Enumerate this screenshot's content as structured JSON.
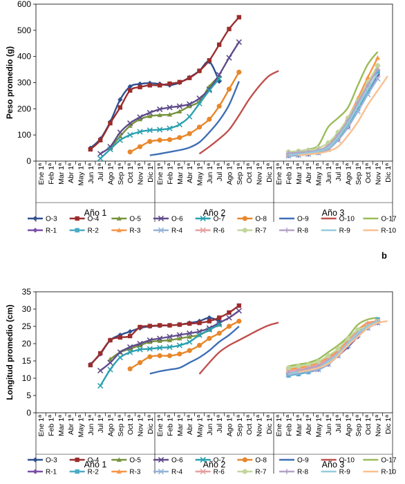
{
  "month_labels": [
    "Ene 1ª",
    "Feb 1ª",
    "Mar 1ª",
    "Abr 1ª",
    "May 1ª",
    "Jun 1ª",
    "Jul 1ª",
    "Ago 1ª",
    "Sep 1ª",
    "Oct 1ª",
    "Nov 1ª",
    "Dic 1ª"
  ],
  "year_labels": [
    "Año 1",
    "Año 2",
    "Año 3"
  ],
  "panel_letter": "b",
  "series_style": [
    {
      "name": "O-3",
      "color": "#2f4f8f",
      "marker": "diamond"
    },
    {
      "name": "O-4",
      "color": "#9b2d2d",
      "marker": "square"
    },
    {
      "name": "O-5",
      "color": "#76923c",
      "marker": "triangle"
    },
    {
      "name": "O-6",
      "color": "#5f4b8b",
      "marker": "x"
    },
    {
      "name": "O-7",
      "color": "#2aa0b0",
      "marker": "x"
    },
    {
      "name": "O-8",
      "color": "#e8872a",
      "marker": "circle"
    },
    {
      "name": "O-9",
      "color": "#3f6fb5",
      "marker": "none"
    },
    {
      "name": "O-10",
      "color": "#c0504d",
      "marker": "none"
    },
    {
      "name": "O-17",
      "color": "#9bbb59",
      "marker": "none"
    },
    {
      "name": "R-1",
      "color": "#7a4fa8",
      "marker": "diamond"
    },
    {
      "name": "R-2",
      "color": "#4bacc6",
      "marker": "square"
    },
    {
      "name": "R-3",
      "color": "#f79646",
      "marker": "triangle"
    },
    {
      "name": "R-4",
      "color": "#95b3d7",
      "marker": "x"
    },
    {
      "name": "R-6",
      "color": "#e6a0a0",
      "marker": "x"
    },
    {
      "name": "R-7",
      "color": "#c3d69b",
      "marker": "circle"
    },
    {
      "name": "R-8",
      "color": "#b3a2c7",
      "marker": "plus"
    },
    {
      "name": "R-9",
      "color": "#93cddd",
      "marker": "none"
    },
    {
      "name": "R-10",
      "color": "#fac090",
      "marker": "none"
    }
  ],
  "chart_data": [
    {
      "type": "line",
      "title": "",
      "ylabel": "Peso promedio (g)",
      "ylim": [
        0,
        600
      ],
      "yticks": [
        0,
        100,
        200,
        300,
        400,
        500,
        600
      ],
      "x_unit": "month index (1 = Ene 1ª of Año 1 ... 36 = Dic 1ª of Año 3)",
      "grid": false,
      "legend": "bottom",
      "series": [
        {
          "name": "O-3",
          "x": [
            6,
            7,
            8,
            9,
            10,
            11,
            12,
            13,
            14,
            15,
            16,
            17,
            18,
            19
          ],
          "y": [
            50,
            85,
            150,
            235,
            285,
            295,
            298,
            295,
            290,
            300,
            320,
            345,
            380,
            305
          ]
        },
        {
          "name": "O-4",
          "x": [
            6,
            7,
            8,
            9,
            10,
            11,
            12,
            13,
            14,
            15,
            16,
            17,
            18,
            19,
            20,
            21
          ],
          "y": [
            45,
            80,
            145,
            205,
            270,
            283,
            290,
            290,
            296,
            302,
            318,
            345,
            385,
            445,
            505,
            550
          ]
        },
        {
          "name": "O-5",
          "x": [
            8,
            9,
            10,
            11,
            12,
            13,
            14,
            15,
            16,
            17,
            18,
            19
          ],
          "y": [
            50,
            95,
            135,
            160,
            172,
            176,
            178,
            190,
            210,
            228,
            285,
            325
          ]
        },
        {
          "name": "O-6",
          "x": [
            7,
            8,
            9,
            10,
            11,
            12,
            13,
            14,
            15,
            16,
            17,
            18,
            19,
            20,
            21
          ],
          "y": [
            28,
            55,
            110,
            145,
            168,
            185,
            198,
            205,
            210,
            218,
            240,
            275,
            330,
            395,
            455
          ]
        },
        {
          "name": "O-7",
          "x": [
            7,
            8,
            9,
            10,
            11,
            12,
            13,
            14,
            15,
            16,
            17,
            18,
            19
          ],
          "y": [
            10,
            45,
            80,
            100,
            112,
            118,
            120,
            125,
            140,
            170,
            220,
            270,
            315
          ]
        },
        {
          "name": "O-8",
          "x": [
            10,
            11,
            12,
            13,
            14,
            15,
            16,
            17,
            18,
            19,
            20,
            21
          ],
          "y": [
            35,
            55,
            75,
            80,
            82,
            90,
            105,
            130,
            160,
            210,
            275,
            340
          ]
        },
        {
          "name": "O-9",
          "x": [
            12,
            13,
            14,
            15,
            16,
            17,
            18,
            19,
            20,
            21
          ],
          "y": [
            22,
            28,
            35,
            42,
            52,
            72,
            110,
            155,
            215,
            305
          ]
        },
        {
          "name": "O-10",
          "x": [
            17,
            18,
            19,
            20,
            21,
            22,
            23,
            24,
            25
          ],
          "y": [
            28,
            55,
            85,
            120,
            175,
            235,
            285,
            325,
            345
          ]
        },
        {
          "name": "O-17",
          "x": [
            26,
            27,
            28,
            29,
            30,
            31,
            32,
            33,
            34,
            35
          ],
          "y": [
            32,
            38,
            45,
            60,
            130,
            165,
            205,
            290,
            370,
            418
          ]
        },
        {
          "name": "R-1",
          "x": [
            26,
            27,
            28,
            29,
            30,
            31,
            32,
            33,
            34,
            35
          ],
          "y": [
            20,
            22,
            26,
            32,
            48,
            82,
            130,
            195,
            265,
            330
          ]
        },
        {
          "name": "R-2",
          "x": [
            26,
            27,
            28,
            29,
            30,
            31,
            32,
            33,
            34,
            35
          ],
          "y": [
            22,
            25,
            30,
            35,
            50,
            90,
            140,
            200,
            265,
            340
          ]
        },
        {
          "name": "R-3",
          "x": [
            26,
            27,
            28,
            29,
            30,
            31,
            32,
            33,
            34,
            35
          ],
          "y": [
            25,
            28,
            32,
            40,
            60,
            105,
            165,
            240,
            320,
            395
          ]
        },
        {
          "name": "R-4",
          "x": [
            26,
            27,
            28,
            29,
            30,
            31,
            32,
            33,
            34,
            35
          ],
          "y": [
            20,
            23,
            27,
            32,
            45,
            80,
            130,
            190,
            255,
            315
          ]
        },
        {
          "name": "R-6",
          "x": [
            26,
            27,
            28,
            29,
            30,
            31,
            32,
            33,
            34,
            35
          ],
          "y": [
            28,
            30,
            34,
            40,
            55,
            95,
            150,
            220,
            290,
            355
          ]
        },
        {
          "name": "R-7",
          "x": [
            26,
            27,
            28,
            29,
            30,
            31,
            32,
            33,
            34,
            35
          ],
          "y": [
            35,
            38,
            42,
            50,
            70,
            110,
            165,
            230,
            300,
            365
          ]
        },
        {
          "name": "R-8",
          "x": [
            26,
            27,
            28,
            29,
            30,
            31,
            32,
            33,
            34,
            35
          ],
          "y": [
            30,
            33,
            36,
            42,
            58,
            100,
            155,
            225,
            290,
            350
          ]
        },
        {
          "name": "R-9",
          "x": [
            26,
            27,
            28,
            29,
            30,
            31,
            32,
            33,
            34,
            35
          ],
          "y": [
            24,
            27,
            31,
            38,
            52,
            92,
            145,
            210,
            275,
            335
          ]
        },
        {
          "name": "R-10",
          "x": [
            27,
            28,
            29,
            30,
            31,
            32,
            33,
            34,
            35,
            36
          ],
          "y": [
            22,
            26,
            30,
            38,
            55,
            98,
            150,
            215,
            270,
            325
          ]
        }
      ]
    },
    {
      "type": "line",
      "title": "",
      "ylabel": "Longitud promedio (cm)",
      "ylim": [
        0,
        35
      ],
      "yticks": [
        0,
        5,
        10,
        15,
        20,
        25,
        30,
        35
      ],
      "x_unit": "month index (1 = Ene 1ª of Año 1 ... 36 = Dic 1ª of Año 3)",
      "grid": false,
      "legend": "bottom",
      "series": [
        {
          "name": "O-3",
          "x": [
            6,
            7,
            8,
            9,
            10,
            11,
            12,
            13,
            14,
            15,
            16,
            17,
            18,
            19
          ],
          "y": [
            14,
            17,
            21,
            22.5,
            23.5,
            24.5,
            25,
            25.2,
            25.3,
            25.5,
            26,
            26.5,
            27.5,
            26.5
          ]
        },
        {
          "name": "O-4",
          "x": [
            6,
            7,
            8,
            9,
            10,
            11,
            12,
            13,
            14,
            15,
            16,
            17,
            18,
            19,
            20,
            21
          ],
          "y": [
            13.8,
            17.2,
            21,
            21.8,
            22.2,
            24.8,
            25.1,
            25.3,
            25.3,
            25.5,
            25.8,
            26,
            26.5,
            27.5,
            29,
            31
          ]
        },
        {
          "name": "O-5",
          "x": [
            8,
            9,
            10,
            11,
            12,
            13,
            14,
            15,
            16,
            17,
            18,
            19
          ],
          "y": [
            15.5,
            17.5,
            18.5,
            19.5,
            20.5,
            20.8,
            21,
            21.5,
            22,
            22.5,
            24,
            25.5
          ]
        },
        {
          "name": "O-6",
          "x": [
            7,
            8,
            9,
            10,
            11,
            12,
            13,
            14,
            15,
            16,
            17,
            18,
            19,
            20,
            21
          ],
          "y": [
            12.2,
            14.5,
            17.5,
            19,
            20,
            21,
            21.5,
            22,
            22.5,
            23,
            23.5,
            24.5,
            26,
            27.5,
            29.5
          ]
        },
        {
          "name": "O-7",
          "x": [
            7,
            8,
            9,
            10,
            11,
            12,
            13,
            14,
            15,
            16,
            17,
            18,
            19
          ],
          "y": [
            7.8,
            12.5,
            16,
            17.5,
            18.3,
            18.5,
            18.8,
            19,
            19.5,
            20.5,
            22.5,
            24,
            25.5
          ]
        },
        {
          "name": "O-8",
          "x": [
            10,
            11,
            12,
            13,
            14,
            15,
            16,
            17,
            18,
            19,
            20,
            21
          ],
          "y": [
            12.7,
            14.5,
            16.2,
            16.5,
            16.5,
            17,
            18,
            19.5,
            21.5,
            23,
            25,
            26.5
          ]
        },
        {
          "name": "O-9",
          "x": [
            12,
            13,
            14,
            15,
            16,
            17,
            18,
            19,
            20,
            21
          ],
          "y": [
            11.3,
            12,
            12.5,
            13,
            14.5,
            16,
            18,
            20.5,
            22.5,
            25
          ]
        },
        {
          "name": "O-10",
          "x": [
            17,
            18,
            19,
            20,
            21,
            22,
            23,
            24,
            25
          ],
          "y": [
            11.2,
            14.5,
            17.5,
            19.5,
            21,
            22.5,
            24,
            25.3,
            26.1
          ]
        },
        {
          "name": "O-17",
          "x": [
            26,
            27,
            28,
            29,
            30,
            31,
            32,
            33,
            34,
            35
          ],
          "y": [
            13.5,
            14,
            14.5,
            15.5,
            17.5,
            19.5,
            22,
            25.5,
            27,
            27.5
          ]
        },
        {
          "name": "R-1",
          "x": [
            26,
            27,
            28,
            29,
            30,
            31,
            32,
            33,
            34,
            35
          ],
          "y": [
            11,
            11.3,
            11.8,
            12.5,
            14,
            16.5,
            19,
            22,
            24.5,
            26
          ]
        },
        {
          "name": "R-2",
          "x": [
            26,
            27,
            28,
            29,
            30,
            31,
            32,
            33,
            34,
            35
          ],
          "y": [
            10.8,
            11.2,
            11.8,
            12.8,
            14.5,
            17,
            19.5,
            22.5,
            25,
            27
          ]
        },
        {
          "name": "R-3",
          "x": [
            26,
            27,
            28,
            29,
            30,
            31,
            32,
            33,
            34,
            35
          ],
          "y": [
            12.5,
            13,
            13.5,
            14.5,
            16,
            18,
            21,
            24,
            26,
            26.5
          ]
        },
        {
          "name": "R-4",
          "x": [
            26,
            27,
            28,
            29,
            30,
            31,
            32,
            33,
            34,
            35
          ],
          "y": [
            11,
            11.5,
            12,
            12.5,
            14,
            16.5,
            19.5,
            22.5,
            24.5,
            26
          ]
        },
        {
          "name": "R-6",
          "x": [
            26,
            27,
            28,
            29,
            30,
            31,
            32,
            33,
            34,
            35
          ],
          "y": [
            12,
            12.5,
            13,
            14,
            15.5,
            17.5,
            20.5,
            23.5,
            25.5,
            26.5
          ]
        },
        {
          "name": "R-7",
          "x": [
            26,
            27,
            28,
            29,
            30,
            31,
            32,
            33,
            34,
            35
          ],
          "y": [
            13,
            13.5,
            14,
            14.8,
            16.5,
            18.5,
            21.5,
            24,
            25,
            26.5
          ]
        },
        {
          "name": "R-8",
          "x": [
            26,
            27,
            28,
            29,
            30,
            31,
            32,
            33,
            34,
            35
          ],
          "y": [
            11.5,
            12,
            12.8,
            13.5,
            15,
            17,
            20,
            23,
            25,
            26.5
          ]
        },
        {
          "name": "R-9",
          "x": [
            26,
            27,
            28,
            29,
            30,
            31,
            32,
            33,
            34,
            35
          ],
          "y": [
            11.2,
            11.8,
            12.3,
            13,
            14.8,
            17,
            20,
            23,
            25,
            26.5
          ]
        },
        {
          "name": "R-10",
          "x": [
            27,
            28,
            29,
            30,
            31,
            32,
            33,
            34,
            35,
            36
          ],
          "y": [
            11.8,
            12.3,
            13,
            14.2,
            16.5,
            19.5,
            22,
            24.5,
            26,
            26.5
          ]
        }
      ]
    }
  ]
}
